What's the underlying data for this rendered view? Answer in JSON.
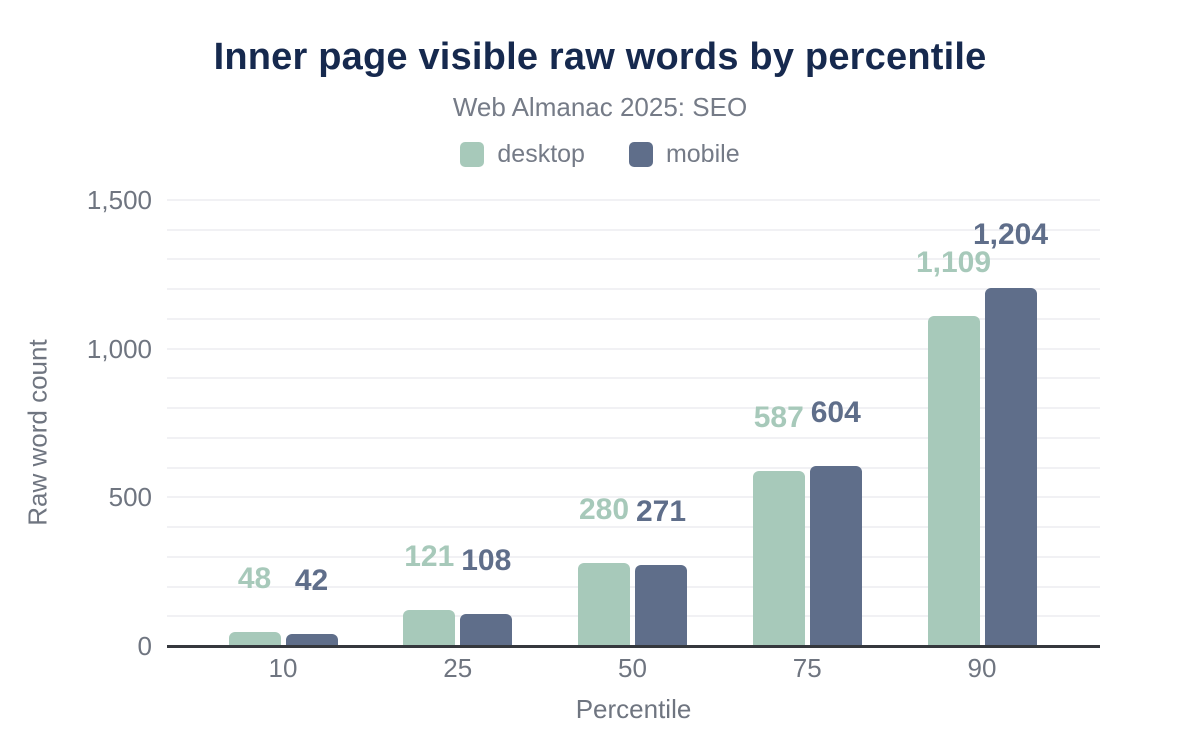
{
  "chart_data": {
    "type": "bar",
    "title": "Inner page visible raw words by percentile",
    "subtitle": "Web Almanac 2025: SEO",
    "categories": [
      "10",
      "25",
      "50",
      "75",
      "90"
    ],
    "series": [
      {
        "name": "desktop",
        "color": "#a7c9ba",
        "values": [
          48,
          121,
          280,
          587,
          1109
        ]
      },
      {
        "name": "mobile",
        "color": "#5f6e8a",
        "values": [
          42,
          108,
          271,
          604,
          1204
        ]
      }
    ],
    "xlabel": "Percentile",
    "ylabel": "Raw word count",
    "ylim": [
      0,
      1500
    ],
    "yticks": [
      0,
      500,
      1000,
      1500
    ],
    "ygrid_step": 100,
    "grid": "horizontal",
    "legend_position": "top"
  },
  "colors": {
    "title_text": "#16294e",
    "muted_text": "#6f7580",
    "subtitle_text": "#757b87",
    "axis_baseline": "#35383d",
    "gridline": "#f1f1f4",
    "desktop": "#a7c9ba",
    "mobile": "#5f6e8a",
    "background": "#ffffff"
  }
}
